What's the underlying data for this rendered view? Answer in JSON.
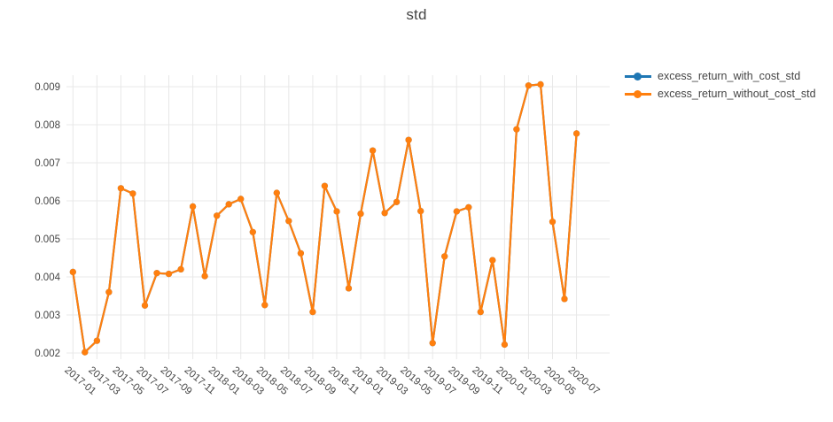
{
  "title": "std",
  "legend": {
    "items": [
      {
        "label": "excess_return_with_cost_std",
        "color": "#1f77b4"
      },
      {
        "label": "excess_return_without_cost_std",
        "color": "#ff7f0e"
      }
    ]
  },
  "colors": {
    "series_with_cost": "#1f77b4",
    "series_without_cost": "#ff7f0e",
    "gridline": "#e8e8e8",
    "text": "#444444",
    "background": "#ffffff"
  },
  "chart_data": {
    "type": "line",
    "title": "std",
    "xlabel": "",
    "ylabel": "",
    "grid": true,
    "legend_position": "right",
    "ylim": [
      0.0019,
      0.0093
    ],
    "y_ticks": [
      0.002,
      0.003,
      0.004,
      0.005,
      0.006,
      0.007,
      0.008,
      0.009
    ],
    "x_tick_labels": [
      "2017-01",
      "2017-03",
      "2017-05",
      "2017-07",
      "2017-09",
      "2017-11",
      "2018-01",
      "2018-03",
      "2018-05",
      "2018-07",
      "2018-09",
      "2018-11",
      "2019-01",
      "2019-03",
      "2019-05",
      "2019-07",
      "2019-09",
      "2019-11",
      "2020-01",
      "2020-03",
      "2020-05",
      "2020-07"
    ],
    "x": [
      "2017-01",
      "2017-02",
      "2017-03",
      "2017-04",
      "2017-05",
      "2017-06",
      "2017-07",
      "2017-08",
      "2017-09",
      "2017-10",
      "2017-11",
      "2017-12",
      "2018-01",
      "2018-02",
      "2018-03",
      "2018-04",
      "2018-05",
      "2018-06",
      "2018-07",
      "2018-08",
      "2018-09",
      "2018-10",
      "2018-11",
      "2018-12",
      "2019-01",
      "2019-02",
      "2019-03",
      "2019-04",
      "2019-05",
      "2019-06",
      "2019-07",
      "2019-08",
      "2019-09",
      "2019-10",
      "2019-11",
      "2019-12",
      "2020-01",
      "2020-02",
      "2020-03",
      "2020-04",
      "2020-05",
      "2020-06",
      "2020-07"
    ],
    "series": [
      {
        "name": "excess_return_with_cost_std",
        "color": "#1f77b4",
        "note": "visually hidden beneath the without_cost series (values coincide)",
        "values": [
          0.00413,
          0.00202,
          0.00232,
          0.0036,
          0.00633,
          0.00619,
          0.00325,
          0.0041,
          0.00408,
          0.0042,
          0.00585,
          0.00402,
          0.00561,
          0.00591,
          0.00605,
          0.00518,
          0.00326,
          0.00621,
          0.00547,
          0.00462,
          0.00308,
          0.00639,
          0.00572,
          0.0037,
          0.00566,
          0.00732,
          0.00568,
          0.00597,
          0.0076,
          0.00573,
          0.00226,
          0.00454,
          0.00572,
          0.00583,
          0.00308,
          0.00444,
          0.00222,
          0.00788,
          0.00903,
          0.00906,
          0.00545,
          0.00342,
          0.00777
        ]
      },
      {
        "name": "excess_return_without_cost_std",
        "color": "#ff7f0e",
        "values": [
          0.00413,
          0.00202,
          0.00232,
          0.0036,
          0.00633,
          0.00619,
          0.00325,
          0.0041,
          0.00408,
          0.0042,
          0.00585,
          0.00402,
          0.00561,
          0.00591,
          0.00605,
          0.00518,
          0.00326,
          0.00621,
          0.00547,
          0.00462,
          0.00308,
          0.00639,
          0.00572,
          0.0037,
          0.00566,
          0.00732,
          0.00568,
          0.00597,
          0.0076,
          0.00573,
          0.00226,
          0.00454,
          0.00572,
          0.00583,
          0.00308,
          0.00444,
          0.00222,
          0.00788,
          0.00903,
          0.00906,
          0.00545,
          0.00342,
          0.00777
        ]
      }
    ]
  }
}
